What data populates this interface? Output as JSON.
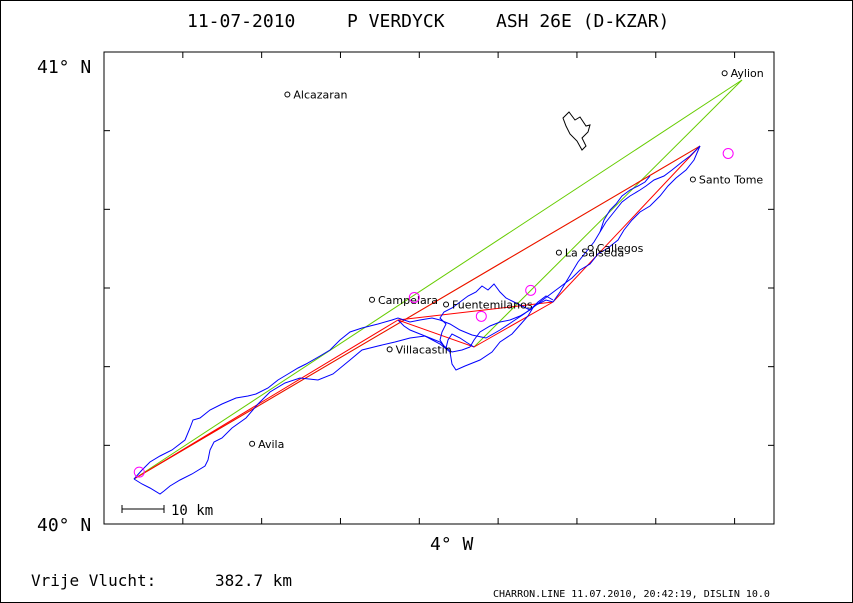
{
  "header": {
    "date": "11-07-2010",
    "pilot": "P VERDYCK",
    "glider": "ASH 26E (D-KZAR)"
  },
  "axes": {
    "north_top": "41° N",
    "north_bottom": "40° N",
    "west": "4° W"
  },
  "scale": {
    "label": "10 km"
  },
  "footer": {
    "distance_label": "Vrije Vlucht:",
    "distance_value": "382.7 km",
    "credit": "CHARRON.LINE 11.07.2010, 20:42:19, DISLIN 10.0"
  },
  "towns": [
    {
      "name": "Aylion",
      "lon": -3.24,
      "lat": 40.955
    },
    {
      "name": "Alcazaran",
      "lon": -4.48,
      "lat": 40.91
    },
    {
      "name": "Santo Tome",
      "lon": -3.33,
      "lat": 40.73
    },
    {
      "name": "Callegos",
      "lon": -3.62,
      "lat": 40.585
    },
    {
      "name": "La Salseda",
      "lon": -3.71,
      "lat": 40.575
    },
    {
      "name": "Campelara",
      "lon": -4.24,
      "lat": 40.475
    },
    {
      "name": "Fuentemilanos",
      "lon": -4.03,
      "lat": 40.465
    },
    {
      "name": "Villacastin",
      "lon": -4.19,
      "lat": 40.37
    },
    {
      "name": "Avila",
      "lon": -4.58,
      "lat": 40.17
    }
  ],
  "turnpoints": [
    {
      "lon": -4.9,
      "lat": 40.11
    },
    {
      "lon": -3.23,
      "lat": 40.785
    },
    {
      "lon": -4.12,
      "lat": 40.48
    },
    {
      "lon": -3.93,
      "lat": 40.44
    },
    {
      "lon": -3.79,
      "lat": 40.495
    }
  ],
  "colors": {
    "track": "#0000ff",
    "task": "#ff0000",
    "optimized": "#66cc00",
    "turnpoint": "#ff00ff",
    "frame": "#000000"
  }
}
